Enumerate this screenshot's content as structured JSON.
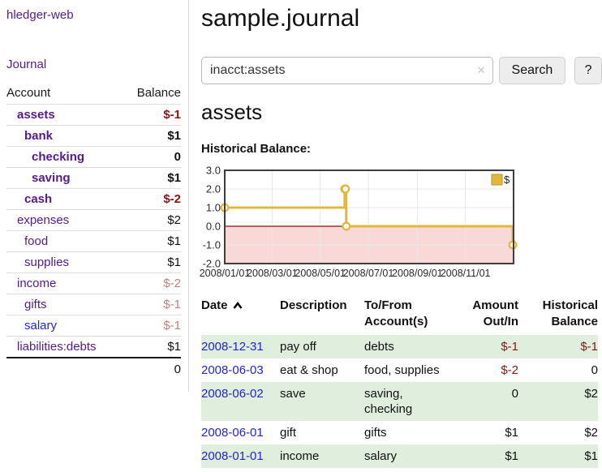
{
  "app": {
    "title": "hledger-web",
    "nav": {
      "journal": "Journal"
    }
  },
  "sidebar": {
    "accounts": {
      "headers": [
        "Account",
        "Balance"
      ],
      "rows": [
        {
          "name": "assets",
          "indent": 1,
          "bold": true,
          "balance": "$-1",
          "balance_style": "neg"
        },
        {
          "name": "bank",
          "indent": 2,
          "bold": true,
          "balance": "$1",
          "balance_style": "pos"
        },
        {
          "name": "checking",
          "indent": 3,
          "bold": true,
          "balance": "0",
          "balance_style": "pos"
        },
        {
          "name": "saving",
          "indent": 3,
          "bold": true,
          "balance": "$1",
          "balance_style": "pos"
        },
        {
          "name": "cash",
          "indent": 2,
          "bold": true,
          "balance": "$-2",
          "balance_style": "neg"
        },
        {
          "name": "expenses",
          "indent": 1,
          "bold": false,
          "balance": "$2",
          "balance_style": "pos"
        },
        {
          "name": "food",
          "indent": 2,
          "bold": false,
          "balance": "$1",
          "balance_style": "pos"
        },
        {
          "name": "supplies",
          "indent": 2,
          "bold": false,
          "balance": "$1",
          "balance_style": "pos"
        },
        {
          "name": "income",
          "indent": 1,
          "bold": false,
          "balance": "$-2",
          "balance_style": "negfaint"
        },
        {
          "name": "gifts",
          "indent": 2,
          "bold": false,
          "balance": "$-1",
          "balance_style": "negfaint"
        },
        {
          "name": "salary",
          "indent": 2,
          "bold": false,
          "link_style": "unvisited",
          "balance": "$-1",
          "balance_style": "negfaint"
        },
        {
          "name": "liabilities:debts",
          "indent": 1,
          "bold": false,
          "balance": "$1",
          "balance_style": "pos"
        }
      ],
      "total": "0"
    }
  },
  "main": {
    "title": "sample.journal",
    "search": {
      "value": "inacct:assets",
      "clear_icon": "✕",
      "search_button": "Search",
      "help_button": "?"
    },
    "account_heading": "assets",
    "chart_label": "Historical Balance:"
  },
  "chart_data": {
    "type": "line",
    "line_style": "steps",
    "title": "Historical Balance",
    "x_type": "date",
    "series": [
      {
        "name": "$",
        "points": [
          {
            "date": "2008-01-01",
            "day": 0,
            "value": 1
          },
          {
            "date": "2008-06-01",
            "day": 152,
            "value": 2
          },
          {
            "date": "2008-06-02",
            "day": 153,
            "value": 2
          },
          {
            "date": "2008-06-03",
            "day": 154,
            "value": 0
          },
          {
            "date": "2008-12-31",
            "day": 365,
            "value": -1
          }
        ]
      }
    ],
    "x_ticks": [
      {
        "label": "2008/01/01",
        "day": 0
      },
      {
        "label": "2008/03/01",
        "day": 60
      },
      {
        "label": "2008/05/01",
        "day": 121
      },
      {
        "label": "2008/07/01",
        "day": 182
      },
      {
        "label": "2008/09/01",
        "day": 244
      },
      {
        "label": "2008/11/01",
        "day": 305
      }
    ],
    "y_ticks": [
      3,
      2,
      1,
      0,
      -1,
      -2
    ],
    "ylim": [
      -2,
      3
    ],
    "x_range_days": 366,
    "grid": true,
    "legend": {
      "label": "$",
      "position": "top-right"
    },
    "colors": {
      "line": "#e3b63e",
      "marker_fill": "#ffffff",
      "negative_region": "#f9d8d8",
      "zero_line": "#8c1010",
      "border": "#3d3d3d",
      "grid": "#e7e7e7",
      "legend_border": "#b8932a"
    }
  },
  "register": {
    "headers": {
      "date": "Date",
      "description": "Description",
      "tofrom": "To/From Account(s)",
      "amount": "Amount Out/In",
      "balance": "Historical Balance"
    },
    "sort": {
      "column": "date",
      "direction": "asc",
      "icon": "chevron-up"
    },
    "rows": [
      {
        "date": "2008-12-31",
        "description": "pay off",
        "accounts": "debts",
        "amount": "$-1",
        "amount_neg": true,
        "balance": "$-1",
        "balance_neg": true,
        "shade": true
      },
      {
        "date": "2008-06-03",
        "description": "eat & shop",
        "accounts": "food, supplies",
        "amount": "$-2",
        "amount_neg": true,
        "balance": "0",
        "balance_neg": false,
        "shade": false
      },
      {
        "date": "2008-06-02",
        "description": "save",
        "accounts": "saving, checking",
        "amount": "0",
        "amount_neg": false,
        "balance": "$2",
        "balance_neg": false,
        "shade": true
      },
      {
        "date": "2008-06-01",
        "description": "gift",
        "accounts": "gifts",
        "amount": "$1",
        "amount_neg": false,
        "balance": "$2",
        "balance_neg": false,
        "shade": false
      },
      {
        "date": "2008-01-01",
        "description": "income",
        "accounts": "salary",
        "amount": "$1",
        "amount_neg": false,
        "balance": "$1",
        "balance_neg": false,
        "shade": true
      }
    ]
  },
  "colors": {
    "link_purple": "#551a8b",
    "link_blue": "#2323d8",
    "negative": "#8b1414",
    "negative_faint": "#bd8282",
    "row_shade_green": "#dfeedd"
  }
}
